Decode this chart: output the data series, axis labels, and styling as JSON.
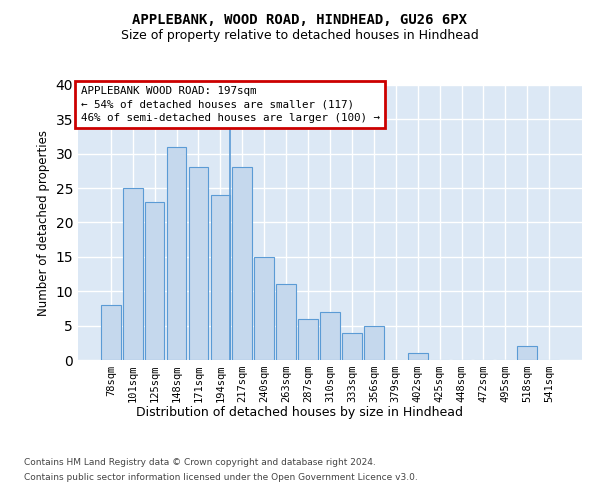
{
  "title": "APPLEBANK, WOOD ROAD, HINDHEAD, GU26 6PX",
  "subtitle": "Size of property relative to detached houses in Hindhead",
  "xlabel": "Distribution of detached houses by size in Hindhead",
  "ylabel": "Number of detached properties",
  "categories": [
    "78sqm",
    "101sqm",
    "125sqm",
    "148sqm",
    "171sqm",
    "194sqm",
    "217sqm",
    "240sqm",
    "263sqm",
    "287sqm",
    "310sqm",
    "333sqm",
    "356sqm",
    "379sqm",
    "402sqm",
    "425sqm",
    "448sqm",
    "472sqm",
    "495sqm",
    "518sqm",
    "541sqm"
  ],
  "values": [
    8,
    25,
    23,
    31,
    28,
    24,
    28,
    15,
    11,
    6,
    7,
    4,
    5,
    0,
    1,
    0,
    0,
    0,
    0,
    2,
    0
  ],
  "bar_color": "#c5d8ed",
  "bar_edge_color": "#5b9bd5",
  "property_line_label": "APPLEBANK WOOD ROAD: 197sqm",
  "annotation_line1": "← 54% of detached houses are smaller (117)",
  "annotation_line2": "46% of semi-detached houses are larger (100) →",
  "annotation_box_facecolor": "#ffffff",
  "annotation_box_edgecolor": "#cc0000",
  "ylim": [
    0,
    40
  ],
  "yticks": [
    0,
    5,
    10,
    15,
    20,
    25,
    30,
    35,
    40
  ],
  "background_color": "#dce8f5",
  "grid_color": "#ffffff",
  "footer_line1": "Contains HM Land Registry data © Crown copyright and database right 2024.",
  "footer_line2": "Contains public sector information licensed under the Open Government Licence v3.0."
}
